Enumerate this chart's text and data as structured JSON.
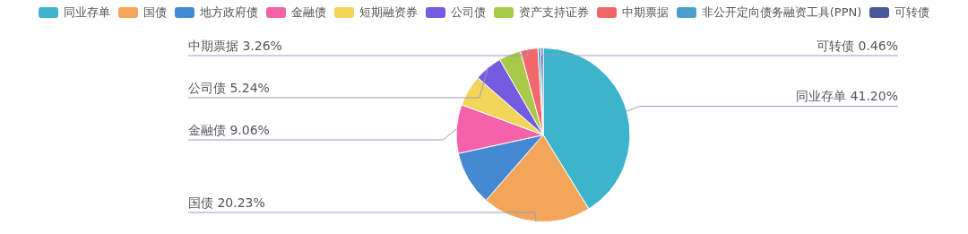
{
  "chart_data": {
    "type": "pie",
    "legend": "top",
    "categories": [
      "同业存单",
      "国债",
      "地方政府债",
      "金融债",
      "短期融资券",
      "公司债",
      "资产支持证券",
      "中期票据",
      "非公开定向债务融资工具(PPN)",
      "可转债"
    ],
    "values": [
      41.2,
      20.23,
      10.15,
      9.06,
      5.8,
      5.24,
      4.1,
      3.26,
      0.5,
      0.46
    ],
    "value_labels": [
      "41.20%",
      "20.23%",
      null,
      "9.06%",
      null,
      "5.24%",
      null,
      "3.26%",
      null,
      "0.46%"
    ],
    "colors": [
      "#3cb4cc",
      "#f3a55a",
      "#4689d3",
      "#f462aa",
      "#f2d65a",
      "#745ce0",
      "#a8ca48",
      "#f2686a",
      "#4ba0c9",
      "#4a5898"
    ]
  }
}
